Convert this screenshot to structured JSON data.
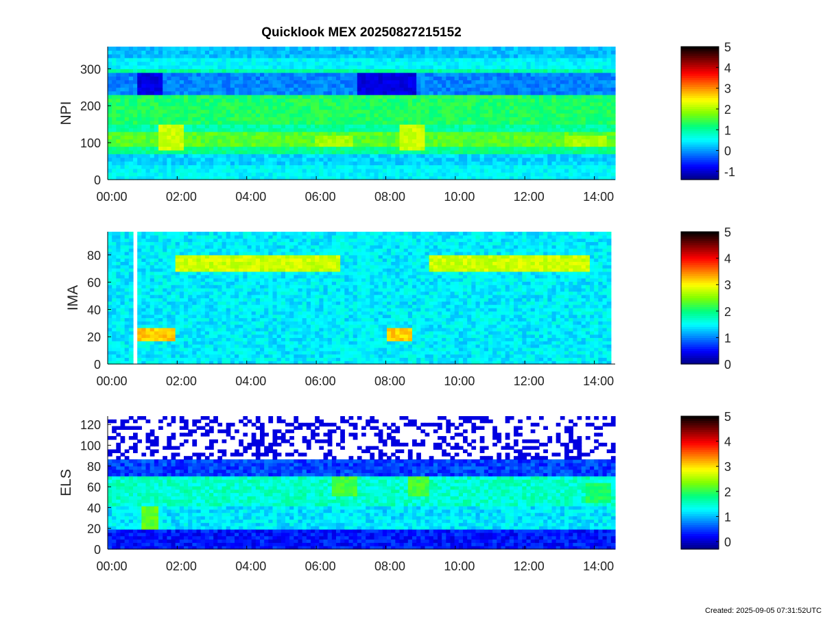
{
  "title": "Quicklook MEX 20250827215152",
  "footer": "Created: 2025-09-05 07:31:52UTC",
  "colormap": [
    "#00007f",
    "#0000ff",
    "#007fff",
    "#00ffff",
    "#00ff7f",
    "#7fff00",
    "#ffff00",
    "#ff7f00",
    "#ff0000",
    "#7f0000",
    "#000000"
  ],
  "chart_data": [
    {
      "type": "heatmap",
      "name": "NPI",
      "title": "Quicklook MEX 20250827215152",
      "ylabel": "NPI",
      "xlabel": "",
      "x_ticks": [
        "00:00",
        "02:00",
        "04:00",
        "06:00",
        "08:00",
        "10:00",
        "12:00",
        "14:00"
      ],
      "x_range_hours": [
        0,
        14.6
      ],
      "y_ticks": [
        0,
        100,
        200,
        300
      ],
      "ylim": [
        0,
        360
      ],
      "colorbar": {
        "min": -1.4,
        "max": 5,
        "ticks": [
          -1,
          0,
          1,
          2,
          3,
          4,
          5
        ]
      },
      "features": [
        {
          "t_start": 0.9,
          "t_end": 1.55,
          "y_start": 230,
          "y_end": 285,
          "value": -0.9
        },
        {
          "t_start": 7.2,
          "t_end": 8.9,
          "y_start": 230,
          "y_end": 285,
          "value": -0.9
        },
        {
          "t_start": 1.5,
          "t_end": 2.2,
          "y_start": 80,
          "y_end": 150,
          "value": 2.2
        },
        {
          "t_start": 8.4,
          "t_end": 9.1,
          "y_start": 80,
          "y_end": 150,
          "value": 2.2
        },
        {
          "t_start": 6.0,
          "t_end": 7.0,
          "y_start": 95,
          "y_end": 115,
          "value": 2.0
        },
        {
          "t_start": 13.1,
          "t_end": 14.3,
          "y_start": 95,
          "y_end": 115,
          "value": 2.0
        }
      ]
    },
    {
      "type": "heatmap",
      "name": "IMA",
      "ylabel": "IMA",
      "xlabel": "",
      "x_ticks": [
        "00:00",
        "02:00",
        "04:00",
        "06:00",
        "08:00",
        "10:00",
        "12:00",
        "14:00"
      ],
      "x_range_hours": [
        0,
        14.6
      ],
      "y_ticks": [
        0,
        20,
        40,
        60,
        80
      ],
      "ylim": [
        0,
        97
      ],
      "colorbar": {
        "min": 0,
        "max": 5,
        "ticks": [
          0,
          1,
          2,
          3,
          4,
          5
        ]
      },
      "data_gap_hours": [
        0.7,
        0.8
      ],
      "features": [
        {
          "t_start": 0.8,
          "t_end": 1.9,
          "y_start": 18,
          "y_end": 26,
          "value": 3.2
        },
        {
          "t_start": 8.0,
          "t_end": 8.7,
          "y_start": 18,
          "y_end": 26,
          "value": 3.2
        },
        {
          "t_start": 2.0,
          "t_end": 6.7,
          "y_start": 68,
          "y_end": 80,
          "value": 2.8
        },
        {
          "t_start": 9.2,
          "t_end": 13.9,
          "y_start": 68,
          "y_end": 80,
          "value": 2.8
        },
        {
          "t_start": 7.2,
          "t_end": 7.6,
          "y_start": 0,
          "y_end": 97,
          "value": 1.5
        }
      ]
    },
    {
      "type": "heatmap",
      "name": "ELS",
      "ylabel": "ELS",
      "xlabel": "",
      "x_ticks": [
        "00:00",
        "02:00",
        "04:00",
        "06:00",
        "08:00",
        "10:00",
        "12:00",
        "14:00"
      ],
      "x_range_hours": [
        0,
        14.6
      ],
      "y_ticks": [
        0,
        20,
        40,
        60,
        80,
        100,
        120
      ],
      "ylim": [
        0,
        128
      ],
      "colorbar": {
        "min": -0.3,
        "max": 5,
        "ticks": [
          0,
          1,
          2,
          3,
          4,
          5
        ]
      },
      "features": [
        {
          "t_start": 1.0,
          "t_end": 1.5,
          "y_start": 20,
          "y_end": 40,
          "value": 2.2
        },
        {
          "t_start": 6.4,
          "t_end": 7.2,
          "y_start": 50,
          "y_end": 70,
          "value": 2.1
        },
        {
          "t_start": 8.6,
          "t_end": 9.2,
          "y_start": 50,
          "y_end": 70,
          "value": 2.1
        },
        {
          "t_start": 13.8,
          "t_end": 14.5,
          "y_start": 45,
          "y_end": 65,
          "value": 1.9
        }
      ]
    }
  ]
}
